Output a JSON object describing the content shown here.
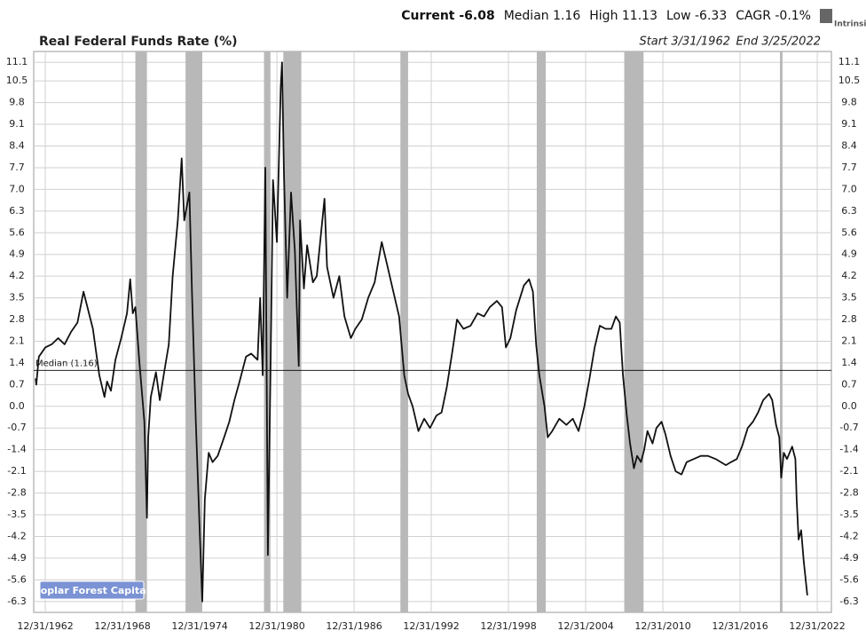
{
  "chart_data": {
    "type": "line",
    "title": "Real Federal Funds Rate (%)",
    "stats": [
      "Current -6.08",
      "Median 1.16",
      "High 11.13",
      "Low -6.33",
      "CAGR -0.1%"
    ],
    "start": "Start 3/31/1962",
    "end": "End 3/25/2022",
    "logo": "Intrinsic",
    "source_label": "Poplar Forest Capital",
    "color": "#111111",
    "median": {
      "value": 1.16,
      "label": "Median (1.16)"
    },
    "recessions": [
      [
        1970.0,
        1970.9
      ],
      [
        1973.9,
        1975.2
      ],
      [
        1980.0,
        1980.5
      ],
      [
        1981.5,
        1982.9
      ],
      [
        1990.6,
        1991.2
      ],
      [
        2001.2,
        2001.9
      ],
      [
        2008.0,
        2009.5
      ],
      [
        2020.1,
        2020.3
      ]
    ],
    "x": [
      1962.25,
      1962.3,
      1962.5,
      1963.0,
      1963.5,
      1964.0,
      1964.5,
      1965.0,
      1965.5,
      1965.97,
      1966.7,
      1967.2,
      1967.6,
      1967.8,
      1968.1,
      1968.45,
      1968.9,
      1969.35,
      1969.6,
      1969.8,
      1970.0,
      1970.3,
      1970.7,
      1970.9,
      1971.0,
      1971.2,
      1971.6,
      1971.9,
      1972.2,
      1972.6,
      1972.9,
      1973.3,
      1973.6,
      1973.8,
      1974.2,
      1974.4,
      1974.7,
      1975.0,
      1975.2,
      1975.4,
      1975.7,
      1976.0,
      1976.4,
      1976.9,
      1977.3,
      1977.7,
      1978.1,
      1978.6,
      1979.0,
      1979.5,
      1979.7,
      1979.9,
      1980.1,
      1980.3,
      1980.5,
      1980.7,
      1981.0,
      1981.3,
      1981.4,
      1981.55,
      1981.8,
      1982.1,
      1982.4,
      1982.7,
      1982.8,
      1983.1,
      1983.35,
      1983.8,
      1984.1,
      1984.7,
      1984.9,
      1985.4,
      1985.85,
      1986.25,
      1986.75,
      1987.1,
      1987.6,
      1988.1,
      1988.6,
      1989.15,
      1989.55,
      1990.05,
      1990.5,
      1990.9,
      1991.2,
      1991.55,
      1992.0,
      1992.45,
      1992.9,
      1993.4,
      1993.8,
      1994.2,
      1994.65,
      1995.0,
      1995.5,
      1996.05,
      1996.6,
      1997.1,
      1997.55,
      1998.1,
      1998.5,
      1998.8,
      1999.15,
      1999.6,
      2000.2,
      2000.6,
      2000.9,
      2001.15,
      2001.4,
      2001.8,
      2002.05,
      2002.4,
      2002.95,
      2003.5,
      2004.0,
      2004.45,
      2004.9,
      2005.3,
      2005.7,
      2006.1,
      2006.55,
      2007.0,
      2007.35,
      2007.65,
      2007.9,
      2008.2,
      2008.45,
      2008.75,
      2009.0,
      2009.3,
      2009.55,
      2009.8,
      2010.2,
      2010.5,
      2010.9,
      2011.2,
      2011.6,
      2012.0,
      2012.45,
      2012.85,
      2013.4,
      2013.95,
      2014.5,
      2015.1,
      2015.5,
      2015.9,
      2016.3,
      2016.75,
      2017.15,
      2017.6,
      2018.0,
      2018.4,
      2018.8,
      2019.25,
      2019.5,
      2019.8,
      2020.05,
      2020.2,
      2020.4,
      2020.65,
      2021.05,
      2021.3,
      2021.4,
      2021.55,
      2021.75,
      2021.95,
      2022.23
    ],
    "values": [
      0.9,
      0.7,
      1.6,
      1.9,
      2.0,
      2.2,
      2.0,
      2.4,
      2.7,
      3.7,
      2.5,
      1.0,
      0.3,
      0.8,
      0.5,
      1.5,
      2.2,
      3.0,
      4.1,
      3.0,
      3.2,
      1.5,
      -0.5,
      -3.6,
      -1.0,
      0.3,
      1.1,
      0.2,
      1.0,
      2.0,
      4.2,
      6.0,
      8.0,
      6.0,
      6.9,
      3.7,
      -0.5,
      -4.0,
      -6.3,
      -3.0,
      -1.5,
      -1.8,
      -1.6,
      -1.0,
      -0.5,
      0.2,
      0.8,
      1.6,
      1.7,
      1.5,
      3.5,
      1.0,
      7.7,
      -4.8,
      1.0,
      7.3,
      5.3,
      10.3,
      11.1,
      7.5,
      3.5,
      6.9,
      5.0,
      1.3,
      6.0,
      3.8,
      5.2,
      4.0,
      4.2,
      6.7,
      4.5,
      3.5,
      4.2,
      2.9,
      2.2,
      2.5,
      2.8,
      3.5,
      4.0,
      5.3,
      4.6,
      3.7,
      2.9,
      1.0,
      0.4,
      0.0,
      -0.8,
      -0.4,
      -0.7,
      -0.3,
      -0.2,
      0.6,
      1.8,
      2.8,
      2.5,
      2.6,
      3.0,
      2.9,
      3.2,
      3.4,
      3.2,
      1.9,
      2.2,
      3.1,
      3.9,
      4.1,
      3.7,
      2.0,
      1.0,
      0.0,
      -1.0,
      -0.8,
      -0.4,
      -0.6,
      -0.4,
      -0.8,
      0.0,
      0.9,
      1.9,
      2.6,
      2.5,
      2.5,
      2.9,
      2.7,
      1.0,
      -0.3,
      -1.2,
      -2.0,
      -1.6,
      -1.8,
      -1.4,
      -0.8,
      -1.2,
      -0.7,
      -0.5,
      -0.9,
      -1.6,
      -2.1,
      -2.2,
      -1.8,
      -1.7,
      -1.6,
      -1.6,
      -1.7,
      -1.8,
      -1.9,
      -1.8,
      -1.7,
      -1.3,
      -0.7,
      -0.5,
      -0.2,
      0.2,
      0.4,
      0.2,
      -0.6,
      -1.0,
      -2.3,
      -1.5,
      -1.7,
      -1.3,
      -1.7,
      -3.0,
      -4.3,
      -4.0,
      -5.0,
      -6.1
    ],
    "xlim": [
      1962.1,
      2024.1
    ],
    "xticks": [
      {
        "value": 1963,
        "label": "12/31/1962"
      },
      {
        "value": 1969,
        "label": "12/31/1968"
      },
      {
        "value": 1975,
        "label": "12/31/1974"
      },
      {
        "value": 1981,
        "label": "12/31/1980"
      },
      {
        "value": 1987,
        "label": "12/31/1986"
      },
      {
        "value": 1993,
        "label": "12/31/1992"
      },
      {
        "value": 1999,
        "label": "12/31/1998"
      },
      {
        "value": 2005,
        "label": "12/31/2004"
      },
      {
        "value": 2011,
        "label": "12/31/2010"
      },
      {
        "value": 2017,
        "label": "12/31/2016"
      },
      {
        "value": 2023,
        "label": "12/31/2022"
      }
    ],
    "ylim": [
      -6.65,
      11.45
    ],
    "yticks": [
      -6.3,
      -5.6,
      -4.9,
      -4.2,
      -3.5,
      -2.8,
      -2.1,
      -1.4,
      -0.7,
      {
        "value": 0,
        "label": "0.0"
      },
      0.7,
      1.4,
      2.1,
      2.8,
      3.5,
      4.2,
      4.9,
      5.6,
      6.3,
      {
        "value": 7,
        "label": "7.0"
      },
      7.7,
      8.4,
      9.1,
      9.8,
      10.5,
      11.1
    ],
    "grid": true
  }
}
